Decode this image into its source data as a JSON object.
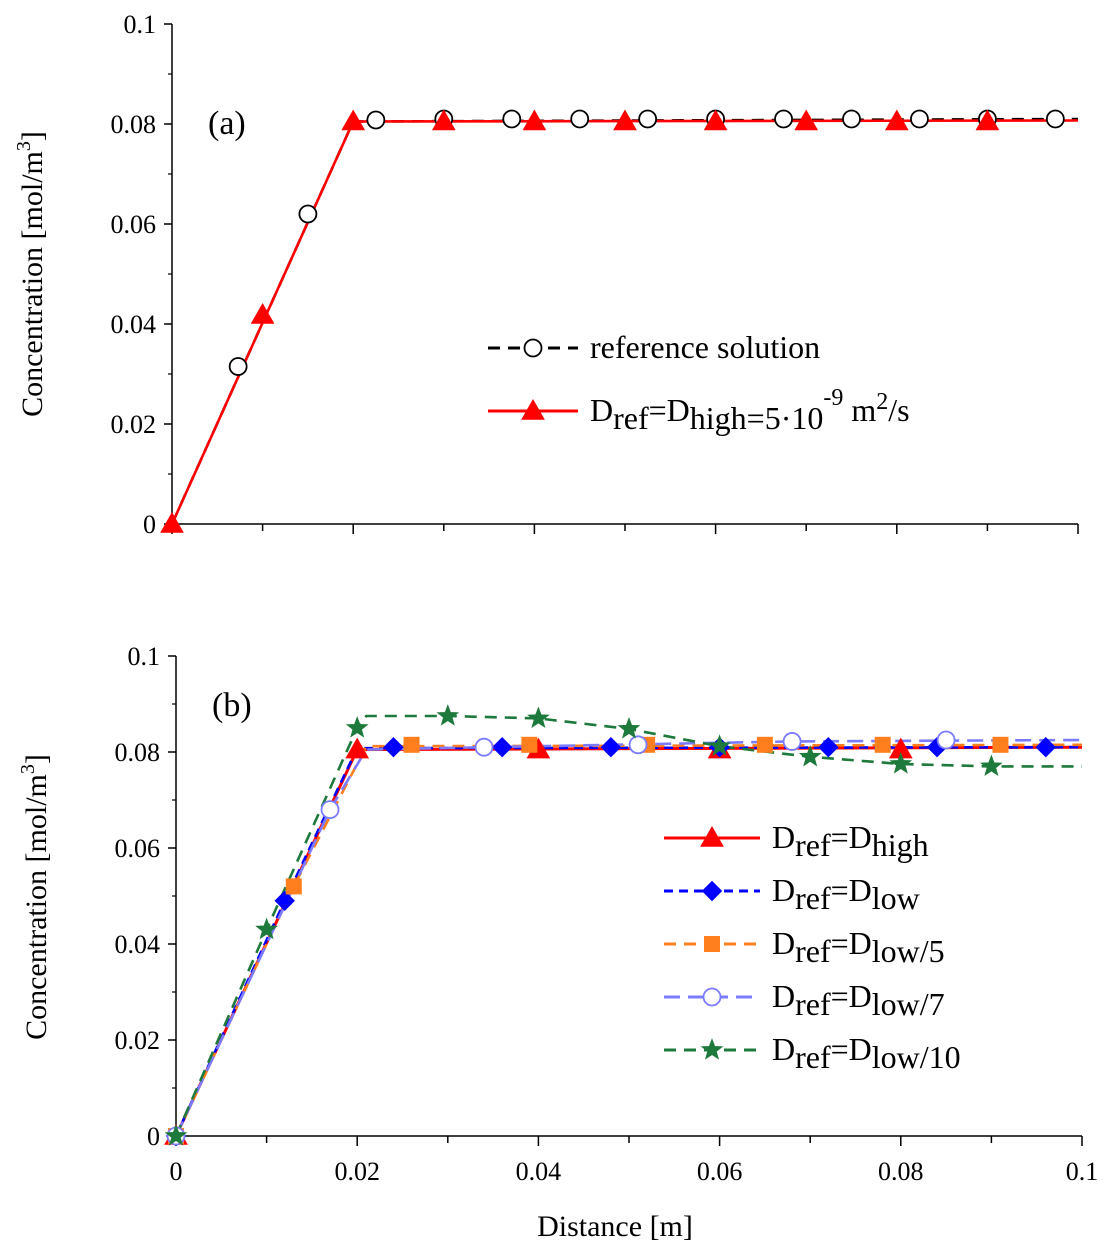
{
  "chart_data": [
    {
      "type": "line",
      "panel_label": "(a)",
      "ylabel": "Concentration [mol/m³]",
      "xlim": [
        0,
        0.1
      ],
      "ylim": [
        0,
        0.1
      ],
      "yticks": [
        "0",
        "0.02",
        "0.04",
        "0.06",
        "0.08",
        "0.1"
      ],
      "grid": false,
      "legend_position": "center-right",
      "series": [
        {
          "name": "reference solution",
          "color": "#000000",
          "dash": "12,8",
          "marker": "open-circle",
          "line_x": [
            0,
            0.02,
            0.1
          ],
          "line_y": [
            0,
            0.0805,
            0.081
          ],
          "marker_x": [
            0.0073,
            0.015,
            0.0225,
            0.03,
            0.0375,
            0.045,
            0.0525,
            0.06,
            0.0675,
            0.075,
            0.0825,
            0.09,
            0.0975
          ],
          "marker_y": [
            0.0315,
            0.062,
            0.0808,
            0.081,
            0.081,
            0.081,
            0.081,
            0.081,
            0.081,
            0.081,
            0.081,
            0.081,
            0.081
          ]
        },
        {
          "name": "Dref=Dhigh=5·10⁻⁹ m²/s",
          "color": "#ff0000",
          "dash": "",
          "marker": "filled-triangle",
          "line_x": [
            0,
            0.02,
            0.1
          ],
          "line_y": [
            0,
            0.0805,
            0.0807
          ],
          "marker_x": [
            0,
            0.01,
            0.02,
            0.03,
            0.04,
            0.05,
            0.06,
            0.07,
            0.08,
            0.09
          ],
          "marker_y": [
            0,
            0.0418,
            0.0805,
            0.0805,
            0.0805,
            0.0805,
            0.0805,
            0.0805,
            0.0805,
            0.0805
          ]
        }
      ],
      "legend": [
        {
          "base": "reference solution",
          "sub": "",
          "mid": "",
          "sub2": "",
          "tail": "",
          "sup": "",
          "tail2": "",
          "sup2": "",
          "tail3": ""
        },
        {
          "base": "D",
          "sub": "ref",
          "mid": "=D",
          "sub2": "high",
          "tail": "=5·10",
          "sup": "-9",
          "tail2": " m",
          "sup2": "2",
          "tail3": "/s"
        }
      ]
    },
    {
      "type": "line",
      "panel_label": "(b)",
      "xlabel": "Distance [m]",
      "ylabel": "Concentration [mol/m³]",
      "xlim": [
        0,
        0.1
      ],
      "ylim": [
        0,
        0.1
      ],
      "xticks": [
        "0",
        "0.02",
        "0.04",
        "0.06",
        "0.08",
        "0.1"
      ],
      "yticks": [
        "0",
        "0.02",
        "0.04",
        "0.06",
        "0.08",
        "0.1"
      ],
      "grid": false,
      "legend_position": "center-right",
      "series": [
        {
          "name": "Dref=Dhigh",
          "color": "#ff0000",
          "dash": "",
          "marker": "filled-triangle",
          "line_x": [
            0,
            0.02,
            0.1
          ],
          "line_y": [
            0,
            0.0805,
            0.081
          ],
          "marker_x": [
            0,
            0.02,
            0.04,
            0.06,
            0.08
          ],
          "marker_y": [
            0,
            0.0805,
            0.0805,
            0.0805,
            0.0805
          ]
        },
        {
          "name": "Dref=Dlow",
          "color": "#0000ff",
          "dash": "9,6",
          "marker": "filled-diamond",
          "line_x": [
            0,
            0.012,
            0.02,
            0.1
          ],
          "line_y": [
            0,
            0.049,
            0.0808,
            0.081
          ],
          "marker_x": [
            0,
            0.012,
            0.024,
            0.036,
            0.048,
            0.06,
            0.072,
            0.084,
            0.096
          ],
          "marker_y": [
            0,
            0.049,
            0.081,
            0.081,
            0.081,
            0.081,
            0.081,
            0.081,
            0.081
          ]
        },
        {
          "name": "Dref=Dlow/5",
          "color": "#ff7f1e",
          "dash": "12,8",
          "marker": "filled-square",
          "line_x": [
            0,
            0.013,
            0.021,
            0.1
          ],
          "line_y": [
            0,
            0.052,
            0.0812,
            0.0815
          ],
          "marker_x": [
            0,
            0.013,
            0.026,
            0.039,
            0.052,
            0.065,
            0.078,
            0.091
          ],
          "marker_y": [
            0,
            0.052,
            0.0815,
            0.0815,
            0.0815,
            0.0815,
            0.0815,
            0.0815
          ]
        },
        {
          "name": "Dref=Dlow/7",
          "color": "#7b7bff",
          "dash": "16,8",
          "marker": "open-circle",
          "line_x": [
            0,
            0.017,
            0.021,
            0.034,
            0.068,
            0.1
          ],
          "line_y": [
            0,
            0.068,
            0.0805,
            0.081,
            0.0822,
            0.0825
          ],
          "marker_x": [
            0,
            0.017,
            0.034,
            0.051,
            0.068,
            0.085
          ],
          "marker_y": [
            0,
            0.068,
            0.081,
            0.0815,
            0.0822,
            0.0825
          ]
        },
        {
          "name": "Dref=Dlow/10",
          "color": "#1e7a3c",
          "dash": "12,8",
          "marker": "filled-star",
          "line_x": [
            0,
            0.01,
            0.02,
            0.021,
            0.03,
            0.04,
            0.05,
            0.06,
            0.07,
            0.08,
            0.09,
            0.1
          ],
          "line_y": [
            0,
            0.043,
            0.085,
            0.0875,
            0.0875,
            0.087,
            0.0848,
            0.0812,
            0.079,
            0.0775,
            0.077,
            0.077
          ],
          "marker_x": [
            0,
            0.01,
            0.02,
            0.03,
            0.04,
            0.05,
            0.06,
            0.07,
            0.08,
            0.09
          ],
          "marker_y": [
            0,
            0.043,
            0.085,
            0.0875,
            0.087,
            0.0848,
            0.0812,
            0.079,
            0.0775,
            0.077
          ]
        }
      ],
      "legend": [
        {
          "base": "D",
          "sub": "ref",
          "mid": "=D",
          "sub2": "high",
          "tail": ""
        },
        {
          "base": "D",
          "sub": "ref",
          "mid": "=D",
          "sub2": "low",
          "tail": ""
        },
        {
          "base": "D",
          "sub": "ref",
          "mid": "=D",
          "sub2": "low",
          "tail": "/5"
        },
        {
          "base": "D",
          "sub": "ref",
          "mid": "=D",
          "sub2": "low",
          "tail": "/7"
        },
        {
          "base": "D",
          "sub": "ref",
          "mid": "=D",
          "sub2": "low",
          "tail": "/10"
        }
      ]
    }
  ]
}
